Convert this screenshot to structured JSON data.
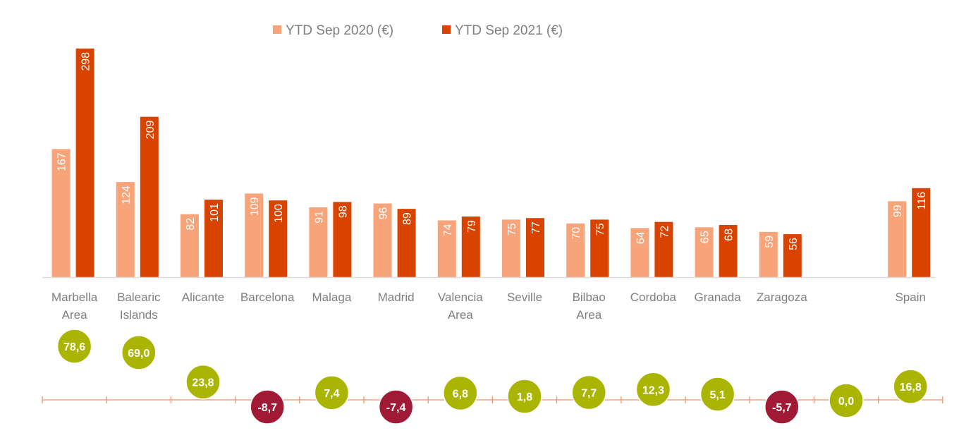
{
  "chart_data": {
    "type": "bar",
    "legend_position": "top-center",
    "grid": false,
    "colors": {
      "series_2020": "#F8A47B",
      "series_2021": "#D84400",
      "positive_change": "#A9B500",
      "negative_change": "#A01A36",
      "change_axis": "#F4A07A",
      "baseline": "#D9D9D9"
    },
    "categories": [
      [
        "Marbella",
        "Area"
      ],
      [
        "Balearic",
        "Islands"
      ],
      [
        "Alicante"
      ],
      [
        "Barcelona"
      ],
      [
        "Malaga"
      ],
      [
        "Madrid"
      ],
      [
        "Valencia",
        "Area"
      ],
      [
        "Seville"
      ],
      [
        "Bilbao",
        "Area"
      ],
      [
        "Cordoba"
      ],
      [
        "Granada"
      ],
      [
        "Zaragoza"
      ],
      [
        ""
      ],
      [
        "Spain"
      ]
    ],
    "series": [
      {
        "name": "YTD Sep 2020 (€)",
        "values": [
          167,
          124,
          82,
          109,
          91,
          96,
          74,
          75,
          70,
          64,
          65,
          59,
          null,
          99
        ]
      },
      {
        "name": "YTD Sep 2021 (€)",
        "values": [
          298,
          209,
          101,
          100,
          98,
          89,
          79,
          77,
          75,
          72,
          68,
          56,
          null,
          116
        ]
      }
    ],
    "change": {
      "values": [
        78.6,
        69.0,
        23.8,
        -8.7,
        7.4,
        -7.4,
        6.8,
        1.8,
        7.7,
        12.3,
        5.1,
        -5.7,
        0.0,
        16.8
      ],
      "labels": [
        "78,6",
        "69,0",
        "23,8",
        "-8,7",
        "7,4",
        "-7,4",
        "6,8",
        "1,8",
        "7,7",
        "12,3",
        "5,1",
        "-5,7",
        "0,0",
        "16,8"
      ]
    },
    "ylim": [
      0,
      300
    ]
  }
}
